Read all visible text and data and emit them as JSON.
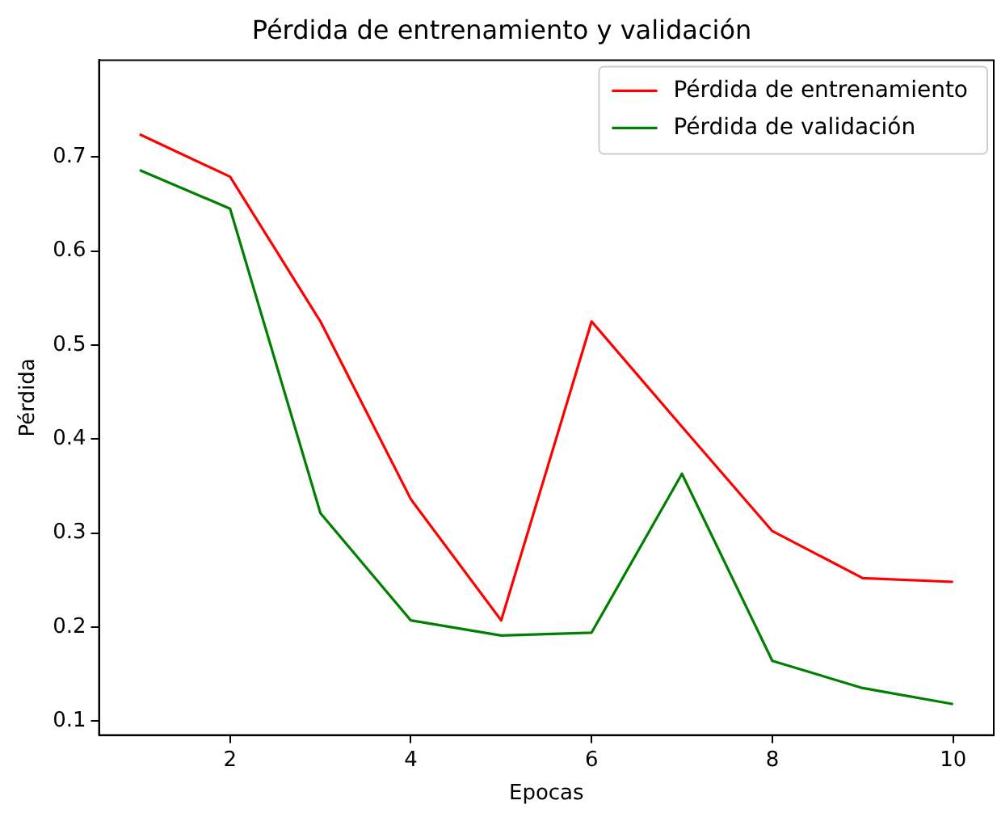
{
  "chart_data": {
    "type": "line",
    "title": "Pérdida de entrenamiento y validación",
    "xlabel": "Epocas",
    "ylabel": "Pérdida",
    "x": [
      1,
      2,
      3,
      4,
      5,
      6,
      7,
      8,
      9,
      10
    ],
    "series": [
      {
        "name": "Pérdida de entrenamiento",
        "color": "#ff0000",
        "values": [
          0.724,
          0.679,
          0.525,
          0.336,
          0.207,
          0.525,
          0.413,
          0.302,
          0.252,
          0.248
        ]
      },
      {
        "name": "Pérdida de validación",
        "color": "#008000",
        "values": [
          0.686,
          0.645,
          0.321,
          0.207,
          0.191,
          0.194,
          0.363,
          0.164,
          0.135,
          0.118
        ]
      }
    ],
    "xlim": [
      0.55,
      10.45
    ],
    "ylim": [
      0.085,
      0.803
    ],
    "xticks": [
      2,
      4,
      6,
      8,
      10
    ],
    "yticks": [
      0.1,
      0.2,
      0.3,
      0.4,
      0.5,
      0.6,
      0.7
    ],
    "grid": false,
    "legend": "top right",
    "marker": "none",
    "line_style": "solid"
  }
}
